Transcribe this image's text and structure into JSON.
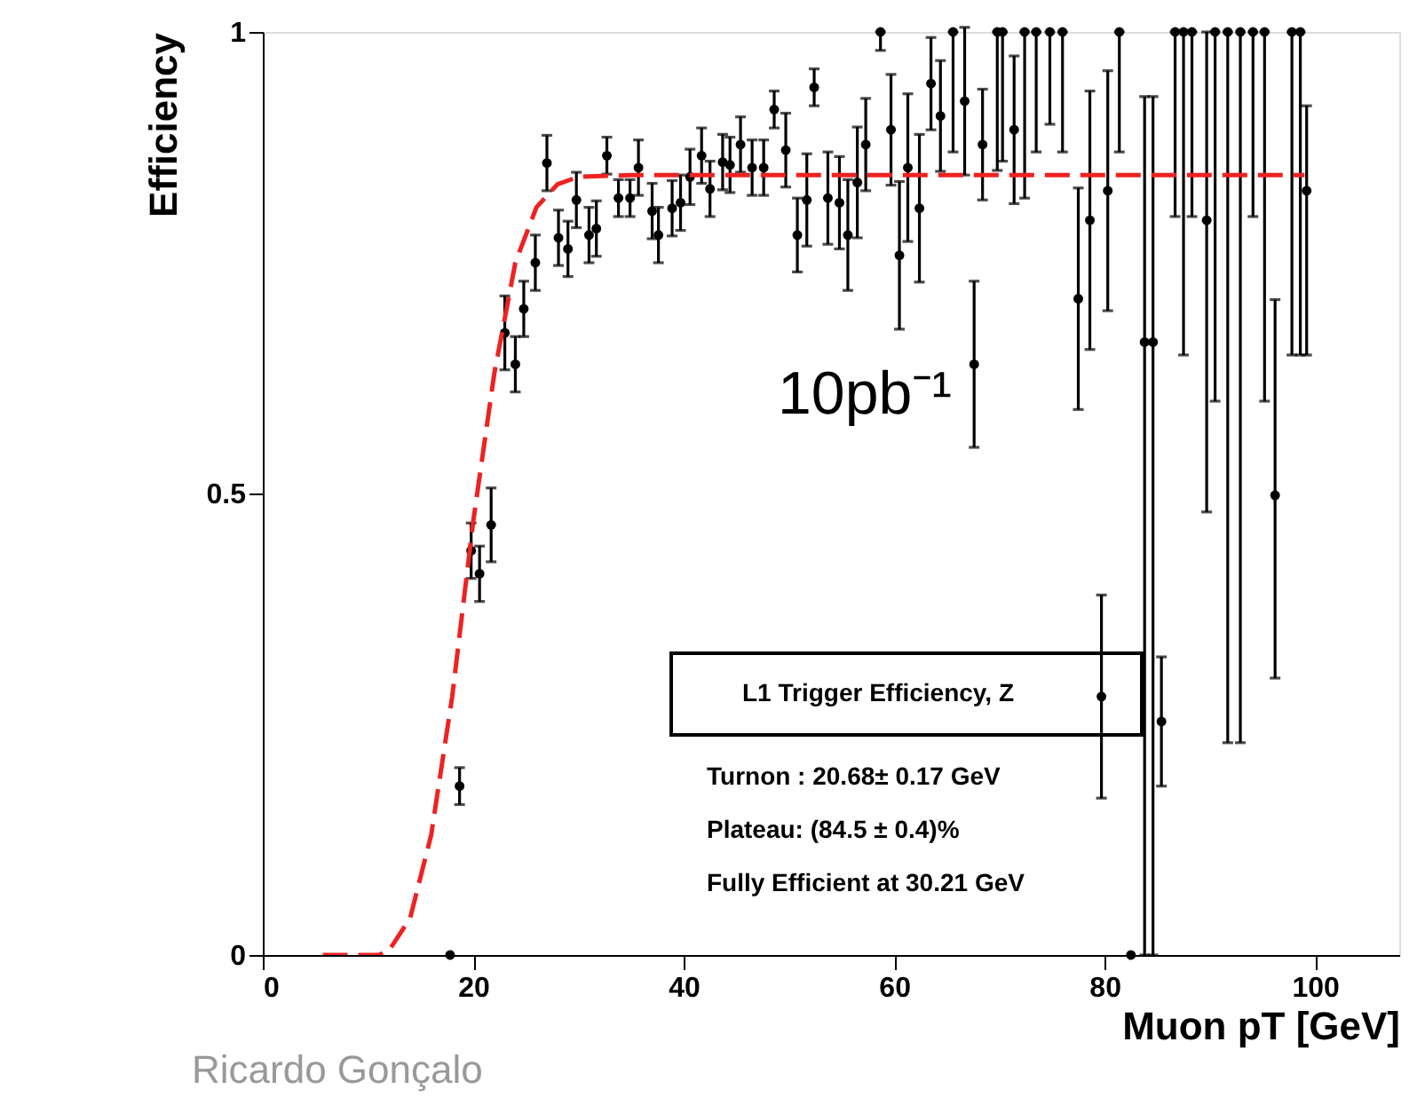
{
  "chart_data": {
    "type": "scatter",
    "xlabel": "Muon pT [GeV]",
    "ylabel": "Efficiency",
    "xlim": [
      0,
      108
    ],
    "ylim": [
      0,
      1
    ],
    "xticks": [
      0,
      20,
      40,
      60,
      80,
      100
    ],
    "yticks": [
      0,
      0.5,
      1
    ],
    "grid": false,
    "marker": "circle",
    "annotations": [
      "10pb⁻¹",
      "L1 Trigger Efficiency, Z",
      "Turnon : 20.68± 0.17 GeV",
      "Plateau: (84.5 ± 0.4)%",
      "Fully Efficient at 30.21 GeV",
      "Ricardo Gonçalo"
    ],
    "series": [
      {
        "color": "#000000",
        "x": [
          17.8,
          18.7,
          19.8,
          20.6,
          21.7,
          23.0,
          24.0,
          24.8,
          25.9,
          27.0,
          28.1,
          29.0,
          29.8,
          31.0,
          31.7,
          32.7,
          33.8,
          34.9,
          35.7,
          37.0,
          37.6,
          38.9,
          39.7,
          40.6,
          41.7,
          42.5,
          43.7,
          44.4,
          45.4,
          46.5,
          47.6,
          48.6,
          49.7,
          50.8,
          51.7,
          52.4,
          53.7,
          54.8,
          55.6,
          56.5,
          57.3,
          58.7,
          59.7,
          60.5,
          61.3,
          62.4,
          63.5,
          64.4,
          65.6,
          66.7,
          67.6,
          68.4,
          69.8,
          70.3,
          71.4,
          72.4,
          73.5,
          74.8,
          76.0,
          77.5,
          78.6,
          79.7,
          80.3,
          81.4,
          82.5,
          83.8,
          84.6,
          85.4,
          86.7,
          87.5,
          88.3,
          89.7,
          90.5,
          91.7,
          92.9,
          94.1,
          95.2,
          96.2,
          97.8,
          98.6,
          99.2
        ],
        "values": [
          0.0,
          0.183,
          0.438,
          0.413,
          0.466,
          0.674,
          0.64,
          0.7,
          0.75,
          0.858,
          0.777,
          0.765,
          0.818,
          0.78,
          0.787,
          0.866,
          0.82,
          0.82,
          0.853,
          0.806,
          0.78,
          0.809,
          0.815,
          0.843,
          0.866,
          0.83,
          0.859,
          0.856,
          0.878,
          0.853,
          0.853,
          0.916,
          0.872,
          0.78,
          0.818,
          0.94,
          0.82,
          0.815,
          0.78,
          0.837,
          0.878,
          1.0,
          0.894,
          0.758,
          0.853,
          0.809,
          0.944,
          0.909,
          1.0,
          0.925,
          0.64,
          0.878,
          1.0,
          1.0,
          0.894,
          1.0,
          1.0,
          1.0,
          1.0,
          0.711,
          0.796,
          0.28,
          0.828,
          1.0,
          0.0,
          0.664,
          0.664,
          0.253,
          1.0,
          1.0,
          1.0,
          0.796,
          1.0,
          1.0,
          1.0,
          1.0,
          1.0,
          0.498,
          1.0,
          1.0,
          0.828
        ],
        "errors": [
          null,
          0.02,
          0.03,
          0.03,
          0.04,
          0.04,
          0.03,
          0.03,
          0.03,
          0.03,
          0.03,
          0.03,
          0.03,
          0.03,
          0.03,
          0.02,
          0.02,
          0.02,
          0.03,
          0.03,
          0.03,
          0.03,
          0.03,
          0.03,
          0.03,
          0.03,
          0.03,
          0.03,
          0.03,
          0.03,
          0.03,
          0.02,
          0.04,
          0.04,
          0.05,
          0.02,
          0.05,
          0.05,
          0.06,
          0.06,
          0.05,
          [
            0.98,
            1.0
          ],
          0.06,
          0.08,
          0.08,
          0.08,
          0.05,
          0.06,
          [
            0.87,
            1.0
          ],
          0.08,
          0.09,
          0.06,
          [
            0.85,
            1.0
          ],
          [
            0.86,
            1.0
          ],
          0.08,
          [
            0.82,
            1.0
          ],
          [
            0.87,
            1.0
          ],
          [
            0.9,
            1.0
          ],
          [
            0.87,
            1.0
          ],
          0.12,
          0.14,
          0.11,
          0.13,
          [
            0.87,
            1.0
          ],
          null,
          [
            0.0,
            0.93
          ],
          [
            0.0,
            0.93
          ],
          0.07,
          [
            0.8,
            1.0
          ],
          [
            0.65,
            1.0
          ],
          [
            0.8,
            1.0
          ],
          [
            0.48,
            1.0
          ],
          [
            0.6,
            1.0
          ],
          [
            0.23,
            1.0
          ],
          [
            0.23,
            1.0
          ],
          [
            0.8,
            1.0
          ],
          [
            0.6,
            1.0
          ],
          [
            0.3,
            0.71
          ],
          [
            0.65,
            1.0
          ],
          [
            0.65,
            1.0
          ],
          [
            0.65,
            0.92
          ]
        ]
      },
      {
        "type": "line",
        "color": "#ee2222",
        "line_style": "dashed",
        "marker": "none",
        "x": [
          5.7,
          11,
          12,
          14,
          16,
          18,
          20,
          22,
          24,
          26,
          28,
          30,
          35,
          99
        ],
        "values": [
          0,
          0,
          0.005,
          0.04,
          0.13,
          0.28,
          0.47,
          0.63,
          0.75,
          0.81,
          0.835,
          0.843,
          0.845,
          0.845
        ]
      }
    ]
  }
}
